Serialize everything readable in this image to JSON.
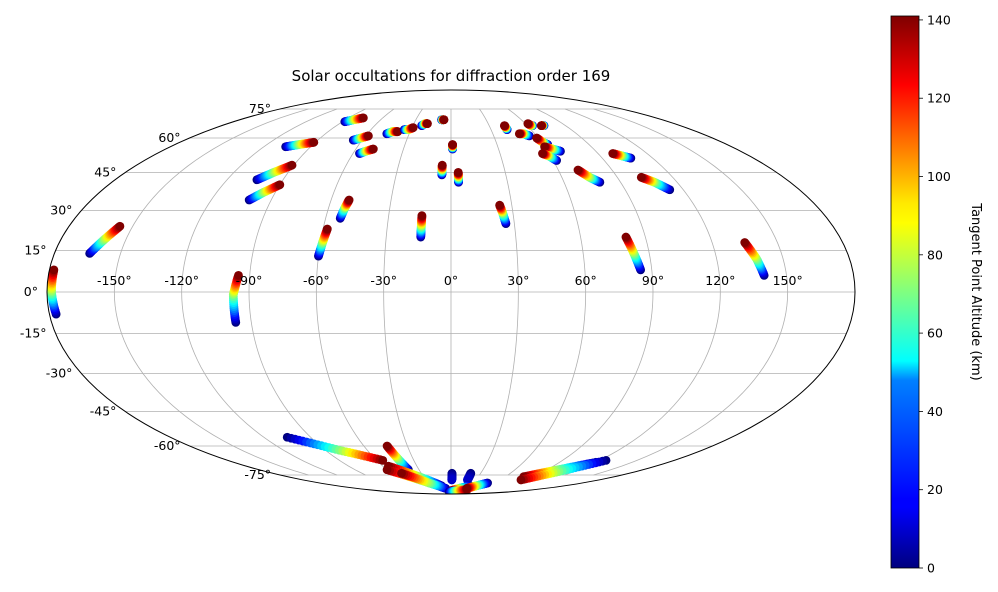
{
  "chart_data": {
    "type": "scatter",
    "projection": "mollweide",
    "title": "Solar occultations for diffraction order 169",
    "grid": true,
    "lon_ticks": [
      -150,
      -120,
      -90,
      -60,
      -30,
      0,
      30,
      60,
      90,
      120,
      150
    ],
    "lon_tick_labels": [
      "-150°",
      "-120°",
      "-90°",
      "-60°",
      "-30°",
      "0°",
      "30°",
      "60°",
      "90°",
      "120°",
      "150°"
    ],
    "lat_ticks": [
      75,
      60,
      45,
      30,
      15,
      0,
      -15,
      -30,
      -45,
      -60,
      -75
    ],
    "lat_tick_labels": [
      "75°",
      "60°",
      "45°",
      "30°",
      "15°",
      "0°",
      "-15°",
      "-30°",
      "-45°",
      "-60°",
      "-75°"
    ],
    "colorbar": {
      "label": "Tangent Point Altitude (km)",
      "min": 0,
      "max": 141,
      "colormap": "jet",
      "ticks": [
        0,
        20,
        40,
        60,
        80,
        100,
        120,
        140
      ],
      "tick_labels": [
        "0",
        "20",
        "40",
        "60",
        "80",
        "100",
        "120",
        "140"
      ]
    },
    "occultations": [
      {
        "lon": [
          -177,
          -178,
          -178
        ],
        "lat": [
          -8,
          0,
          8
        ],
        "alt": [
          0,
          70,
          141
        ]
      },
      {
        "lon": [
          -164,
          -160,
          -156
        ],
        "lat": [
          14,
          19,
          24
        ],
        "alt": [
          0,
          70,
          141
        ]
      },
      {
        "lon": [
          -97,
          -97,
          -95
        ],
        "lat": [
          -11,
          -1,
          6
        ],
        "alt": [
          0,
          70,
          141
        ]
      },
      {
        "lon": [
          -101,
          -96,
          -90
        ],
        "lat": [
          34,
          37,
          40
        ],
        "alt": [
          0,
          70,
          141
        ]
      },
      {
        "lon": [
          -104,
          -98,
          -91
        ],
        "lat": [
          42,
          45,
          48
        ],
        "alt": [
          0,
          70,
          141
        ]
      },
      {
        "lon": [
          -106,
          -99,
          -91
        ],
        "lat": [
          56,
          57,
          58
        ],
        "alt": [
          0,
          70,
          141
        ]
      },
      {
        "lon": [
          -88,
          -83,
          -77
        ],
        "lat": [
          68,
          69,
          70
        ],
        "alt": [
          0,
          70,
          141
        ]
      },
      {
        "lon": [
          -66,
          -62,
          -58
        ],
        "lat": [
          59,
          60,
          61
        ],
        "alt": [
          0,
          70,
          141
        ]
      },
      {
        "lon": [
          -56,
          -53,
          -49
        ],
        "lat": [
          53,
          54,
          55
        ],
        "alt": [
          0,
          70,
          141
        ]
      },
      {
        "lon": [
          -53,
          -52,
          -51
        ],
        "lat": [
          27,
          31,
          34
        ],
        "alt": [
          0,
          70,
          141
        ]
      },
      {
        "lon": [
          -60,
          -59,
          -58
        ],
        "lat": [
          13,
          18,
          23
        ],
        "alt": [
          0,
          70,
          141
        ]
      },
      {
        "lon": [
          -46,
          -43,
          -39
        ],
        "lat": [
          62,
          63,
          63
        ],
        "alt": [
          0,
          70,
          141
        ]
      },
      {
        "lon": [
          -35,
          -32,
          -29
        ],
        "lat": [
          64,
          64,
          65
        ],
        "alt": [
          0,
          70,
          141
        ]
      },
      {
        "lon": [
          -23,
          -21,
          -19
        ],
        "lat": [
          66,
          67,
          67
        ],
        "alt": [
          0,
          70,
          141
        ]
      },
      {
        "lon": [
          -14,
          -14,
          -14
        ],
        "lat": [
          20,
          24,
          28
        ],
        "alt": [
          0,
          70,
          141
        ]
      },
      {
        "lon": [
          -8,
          -7,
          -6
        ],
        "lat": [
          69,
          69,
          69
        ],
        "alt": [
          0,
          70,
          141
        ]
      },
      {
        "lon": [
          1,
          1,
          1
        ],
        "lat": [
          55,
          56,
          57
        ],
        "alt": [
          0,
          70,
          141
        ]
      },
      {
        "lon": [
          -5,
          -5,
          -5
        ],
        "lat": [
          44,
          46,
          48
        ],
        "alt": [
          0,
          70,
          141
        ]
      },
      {
        "lon": [
          4,
          4,
          4
        ],
        "lat": [
          41,
          43,
          45
        ],
        "alt": [
          0,
          70,
          141
        ]
      },
      {
        "lon": [
          26,
          25,
          24
        ],
        "lat": [
          25,
          29,
          32
        ],
        "alt": [
          0,
          70,
          141
        ]
      },
      {
        "lon": [
          42,
          42,
          42
        ],
        "lat": [
          64,
          65,
          66
        ],
        "alt": [
          0,
          70,
          141
        ]
      },
      {
        "lon": [
          55,
          52,
          49
        ],
        "lat": [
          61,
          62,
          62
        ],
        "alt": [
          0,
          70,
          141
        ]
      },
      {
        "lon": [
          63,
          61,
          59
        ],
        "lat": [
          57,
          58,
          60
        ],
        "alt": [
          0,
          70,
          141
        ]
      },
      {
        "lon": [
          68,
          64,
          60
        ],
        "lat": [
          54,
          55,
          56
        ],
        "alt": [
          0,
          70,
          141
        ]
      },
      {
        "lon": [
          62,
          59,
          56
        ],
        "lat": [
          50,
          52,
          53
        ],
        "alt": [
          0,
          70,
          141
        ]
      },
      {
        "lon": [
          64,
          63,
          62
        ],
        "lat": [
          66,
          66,
          67
        ],
        "alt": [
          0,
          70,
          141
        ]
      },
      {
        "lon": [
          73,
          72,
          71
        ],
        "lat": [
          66,
          66,
          66
        ],
        "alt": [
          0,
          70,
          141
        ]
      },
      {
        "lon": [
          79,
          75,
          71
        ],
        "lat": [
          41,
          43,
          46
        ],
        "alt": [
          0,
          70,
          141
        ]
      },
      {
        "lon": [
          107,
          103,
          99
        ],
        "lat": [
          51,
          52,
          53
        ],
        "alt": [
          0,
          70,
          141
        ]
      },
      {
        "lon": [
          113,
          108,
          103
        ],
        "lat": [
          38,
          41,
          43
        ],
        "alt": [
          0,
          70,
          141
        ]
      },
      {
        "lon": [
          85,
          83,
          81
        ],
        "lat": [
          8,
          14,
          20
        ],
        "alt": [
          0,
          70,
          141
        ]
      },
      {
        "lon": [
          140,
          138,
          135
        ],
        "lat": [
          6,
          12,
          18
        ],
        "alt": [
          0,
          70,
          141
        ]
      },
      {
        "lon": [
          -105,
          -80,
          -55
        ],
        "lat": [
          -56,
          -62,
          -67
        ],
        "alt": [
          0,
          70,
          141
        ]
      },
      {
        "lon": [
          -40,
          -42,
          -44
        ],
        "lat": [
          -72,
          -66,
          -60
        ],
        "alt": [
          0,
          70,
          141
        ]
      },
      {
        "lon": [
          -15,
          -35,
          -55
        ],
        "lat": [
          -82,
          -76,
          -70
        ],
        "alt": [
          0,
          70,
          141
        ]
      },
      {
        "lon": [
          -15,
          -38,
          -60
        ],
        "lat": [
          -83,
          -78,
          -72
        ],
        "alt": [
          0,
          70,
          141
        ]
      },
      {
        "lon": [
          -10,
          -30,
          -50
        ],
        "lat": [
          -84,
          -80,
          -74
        ],
        "alt": [
          0,
          70,
          141
        ]
      },
      {
        "lon": [
          1,
          1,
          1
        ],
        "lat": [
          -74,
          -76,
          -78
        ],
        "alt": [
          0,
          5,
          10
        ]
      },
      {
        "lon": [
          20,
          20,
          20
        ],
        "lat": [
          -74,
          -76,
          -78
        ],
        "alt": [
          0,
          5,
          10
        ]
      },
      {
        "lon": [
          120,
          100,
          80
        ],
        "lat": [
          -68,
          -72,
          -76
        ],
        "alt": [
          0,
          70,
          141
        ]
      },
      {
        "lon": [
          125,
          105,
          85
        ],
        "lat": [
          -67,
          -73,
          -78
        ],
        "alt": [
          0,
          70,
          141
        ]
      },
      {
        "lon": [
          30,
          15,
          0
        ],
        "lat": [
          -82,
          -84,
          -86
        ],
        "alt": [
          0,
          70,
          141
        ]
      },
      {
        "lon": [
          -5,
          15,
          35
        ],
        "lat": [
          -87,
          -86,
          -85
        ],
        "alt": [
          0,
          70,
          141
        ]
      },
      {
        "lon": [
          50,
          40,
          30
        ],
        "lat": [
          -80,
          -82,
          -84
        ],
        "alt": [
          0,
          70,
          141
        ]
      }
    ]
  }
}
